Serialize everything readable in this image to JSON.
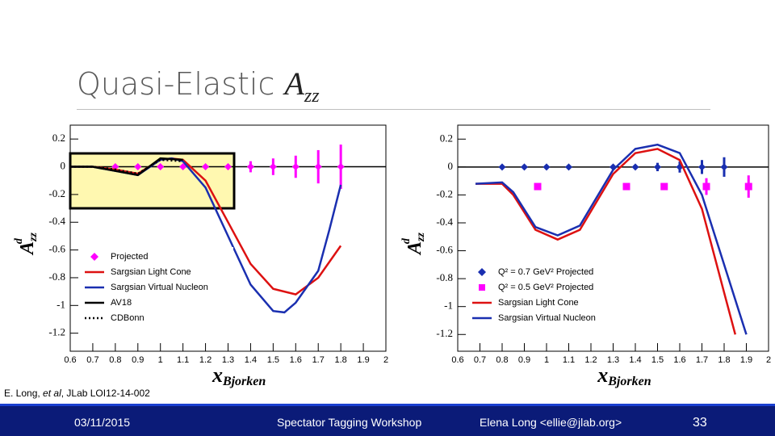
{
  "header": {
    "title": "Quasi-Elastic",
    "title_symbol": "A",
    "title_subscript": "zz"
  },
  "citation": {
    "authors": "E. Long,",
    "etal": "et al",
    "source": ", JLab LOI12-14-002"
  },
  "footer": {
    "date": "03/11/2015",
    "event": "Spectator Tagging Workshop",
    "author": "Elena Long <ellie@jlab.org>",
    "page": "33"
  },
  "chart_data": [
    {
      "type": "line",
      "xlabel": "x",
      "xlabel_sub": "Bjorken",
      "ylabel": "A",
      "ylabel_sup": "d",
      "ylabel_sub": "zz",
      "xlim": [
        0.6,
        2
      ],
      "xticks": [
        0.6,
        0.7,
        0.8,
        0.9,
        1,
        1.1,
        1.2,
        1.3,
        1.4,
        1.5,
        1.6,
        1.7,
        1.8,
        1.9,
        2
      ],
      "ylim": [
        -1.33,
        0.3
      ],
      "yticks": [
        0.2,
        0,
        -0.2,
        -0.4,
        -0.6,
        -0.8,
        -1,
        -1.2
      ],
      "legend": "lower left",
      "series": [
        {
          "name": "Projected",
          "color": "#ff00ff",
          "style": "points",
          "marker": "diamond",
          "x": [
            0.8,
            0.9,
            1.0,
            1.1,
            1.2,
            1.3,
            1.4,
            1.5,
            1.6,
            1.7,
            1.8
          ],
          "values": [
            0,
            0,
            0,
            0,
            0,
            0,
            0,
            0,
            0,
            0,
            0
          ],
          "errors": [
            0.01,
            0.01,
            0.01,
            0.01,
            0.015,
            0.02,
            0.04,
            0.06,
            0.08,
            0.12,
            0.16
          ]
        },
        {
          "name": "Sargsian Light Cone",
          "color": "#dd1111",
          "style": "solid",
          "x": [
            0.6,
            0.7,
            0.8,
            0.9,
            1.0,
            1.05,
            1.1,
            1.2,
            1.3,
            1.4,
            1.5,
            1.6,
            1.7,
            1.8
          ],
          "values": [
            0,
            0,
            -0.02,
            -0.05,
            0.05,
            0.06,
            0.05,
            -0.1,
            -0.4,
            -0.7,
            -0.88,
            -0.92,
            -0.8,
            -0.57
          ]
        },
        {
          "name": "Sargsian Virtual Nucleon",
          "color": "#1a2fb0",
          "style": "solid",
          "x": [
            0.6,
            0.7,
            0.8,
            0.9,
            1.0,
            1.05,
            1.1,
            1.2,
            1.3,
            1.4,
            1.5,
            1.55,
            1.6,
            1.7,
            1.75,
            1.8
          ],
          "values": [
            0,
            0,
            -0.03,
            -0.06,
            0.05,
            0.06,
            0.04,
            -0.15,
            -0.5,
            -0.85,
            -1.04,
            -1.05,
            -0.98,
            -0.75,
            -0.45,
            -0.13
          ]
        },
        {
          "name": "AV18",
          "color": "#000000",
          "style": "solid",
          "x": [
            0.6,
            0.7,
            0.8,
            0.9,
            1.0,
            1.1
          ],
          "values": [
            0,
            0,
            -0.03,
            -0.06,
            0.06,
            0.05
          ]
        },
        {
          "name": "CDBonn",
          "color": "#000000",
          "style": "dotted",
          "x": [
            0.6,
            0.7,
            0.8,
            0.9,
            1.0,
            1.1
          ],
          "values": [
            0,
            0,
            -0.02,
            -0.05,
            0.05,
            0.04
          ]
        }
      ]
    },
    {
      "type": "line",
      "xlabel": "x",
      "xlabel_sub": "Bjorken",
      "ylabel": "A",
      "ylabel_sup": "d",
      "ylabel_sub": "zz",
      "xlim": [
        0.6,
        2
      ],
      "xticks": [
        0.6,
        0.7,
        0.8,
        0.9,
        1,
        1.1,
        1.2,
        1.3,
        1.4,
        1.5,
        1.6,
        1.7,
        1.8,
        1.9,
        2
      ],
      "ylim": [
        -1.32,
        0.3
      ],
      "yticks": [
        0.2,
        0,
        -0.2,
        -0.4,
        -0.6,
        -0.8,
        -1,
        -1.2
      ],
      "legend": "lower left",
      "series": [
        {
          "name": "Q² = 0.7 GeV² Projected",
          "color": "#1a2fb0",
          "style": "points",
          "marker": "diamond",
          "x": [
            0.8,
            0.9,
            1.0,
            1.1,
            1.3,
            1.4,
            1.5,
            1.6,
            1.7,
            1.8
          ],
          "values": [
            0,
            0,
            0,
            0,
            0,
            0,
            0,
            0,
            0,
            0
          ],
          "errors": [
            0.005,
            0.005,
            0.005,
            0.005,
            0.01,
            0.015,
            0.03,
            0.04,
            0.05,
            0.07
          ]
        },
        {
          "name": "Q² = 0.5 GeV² Projected",
          "color": "#ff00ff",
          "style": "points",
          "marker": "square",
          "x": [
            0.96,
            1.36,
            1.53,
            1.72,
            1.91
          ],
          "values": [
            -0.14,
            -0.14,
            -0.14,
            -0.14,
            -0.14
          ],
          "errors": [
            0.01,
            0.01,
            0.02,
            0.06,
            0.08
          ]
        },
        {
          "name": "Sargsian Light Cone",
          "color": "#dd1111",
          "style": "solid",
          "x": [
            0.68,
            0.8,
            0.85,
            0.95,
            1.05,
            1.15,
            1.3,
            1.4,
            1.5,
            1.6,
            1.7,
            1.8,
            1.85
          ],
          "values": [
            -0.12,
            -0.12,
            -0.2,
            -0.45,
            -0.52,
            -0.45,
            -0.05,
            0.1,
            0.13,
            0.05,
            -0.3,
            -0.9,
            -1.2
          ]
        },
        {
          "name": "Sargsian Virtual Nucleon",
          "color": "#1a2fb0",
          "style": "solid",
          "x": [
            0.68,
            0.8,
            0.85,
            0.95,
            1.05,
            1.15,
            1.3,
            1.4,
            1.5,
            1.6,
            1.7,
            1.8,
            1.9
          ],
          "values": [
            -0.12,
            -0.11,
            -0.18,
            -0.43,
            -0.49,
            -0.42,
            -0.02,
            0.13,
            0.16,
            0.1,
            -0.2,
            -0.7,
            -1.2
          ]
        }
      ]
    }
  ]
}
